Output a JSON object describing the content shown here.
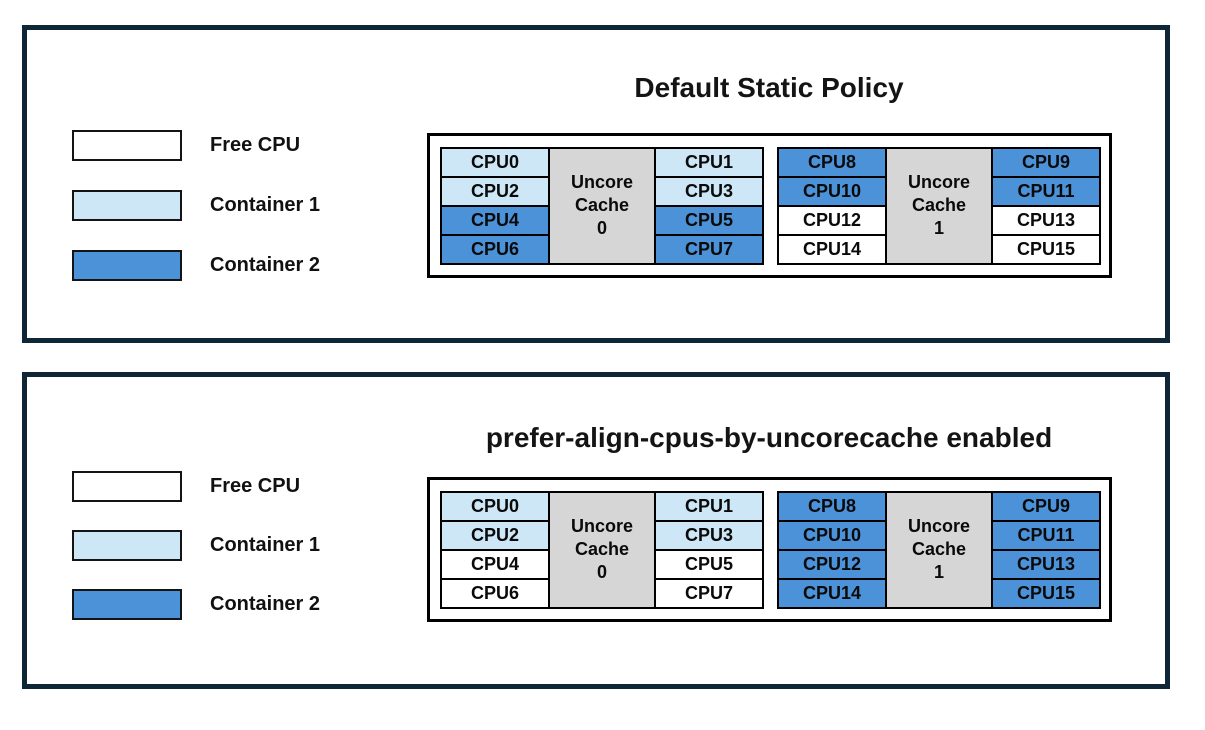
{
  "colors": {
    "free": "#ffffff",
    "container1": "#cde7f6",
    "container2": "#4c92d8",
    "cache": "#d6d6d6",
    "panel_border": "#0e2635",
    "cell_border": "#000000"
  },
  "legend": [
    {
      "label": "Free CPU",
      "state": "free"
    },
    {
      "label": "Container 1",
      "state": "container1"
    },
    {
      "label": "Container 2",
      "state": "container2"
    }
  ],
  "panels": [
    {
      "title": "Default Static Policy",
      "groups": [
        {
          "cache_lines": [
            "Uncore",
            "Cache",
            "0"
          ],
          "left_cpus": [
            {
              "label": "CPU0",
              "state": "container1"
            },
            {
              "label": "CPU2",
              "state": "container1"
            },
            {
              "label": "CPU4",
              "state": "container2"
            },
            {
              "label": "CPU6",
              "state": "container2"
            }
          ],
          "right_cpus": [
            {
              "label": "CPU1",
              "state": "container1"
            },
            {
              "label": "CPU3",
              "state": "container1"
            },
            {
              "label": "CPU5",
              "state": "container2"
            },
            {
              "label": "CPU7",
              "state": "container2"
            }
          ]
        },
        {
          "cache_lines": [
            "Uncore",
            "Cache",
            "1"
          ],
          "left_cpus": [
            {
              "label": "CPU8",
              "state": "container2"
            },
            {
              "label": "CPU10",
              "state": "container2"
            },
            {
              "label": "CPU12",
              "state": "free"
            },
            {
              "label": "CPU14",
              "state": "free"
            }
          ],
          "right_cpus": [
            {
              "label": "CPU9",
              "state": "container2"
            },
            {
              "label": "CPU11",
              "state": "container2"
            },
            {
              "label": "CPU13",
              "state": "free"
            },
            {
              "label": "CPU15",
              "state": "free"
            }
          ]
        }
      ]
    },
    {
      "title": "prefer-align-cpus-by-uncorecache enabled",
      "groups": [
        {
          "cache_lines": [
            "Uncore",
            "Cache",
            "0"
          ],
          "left_cpus": [
            {
              "label": "CPU0",
              "state": "container1"
            },
            {
              "label": "CPU2",
              "state": "container1"
            },
            {
              "label": "CPU4",
              "state": "free"
            },
            {
              "label": "CPU6",
              "state": "free"
            }
          ],
          "right_cpus": [
            {
              "label": "CPU1",
              "state": "container1"
            },
            {
              "label": "CPU3",
              "state": "container1"
            },
            {
              "label": "CPU5",
              "state": "free"
            },
            {
              "label": "CPU7",
              "state": "free"
            }
          ]
        },
        {
          "cache_lines": [
            "Uncore",
            "Cache",
            "1"
          ],
          "left_cpus": [
            {
              "label": "CPU8",
              "state": "container2"
            },
            {
              "label": "CPU10",
              "state": "container2"
            },
            {
              "label": "CPU12",
              "state": "container2"
            },
            {
              "label": "CPU14",
              "state": "container2"
            }
          ],
          "right_cpus": [
            {
              "label": "CPU9",
              "state": "container2"
            },
            {
              "label": "CPU11",
              "state": "container2"
            },
            {
              "label": "CPU13",
              "state": "container2"
            },
            {
              "label": "CPU15",
              "state": "container2"
            }
          ]
        }
      ]
    }
  ]
}
